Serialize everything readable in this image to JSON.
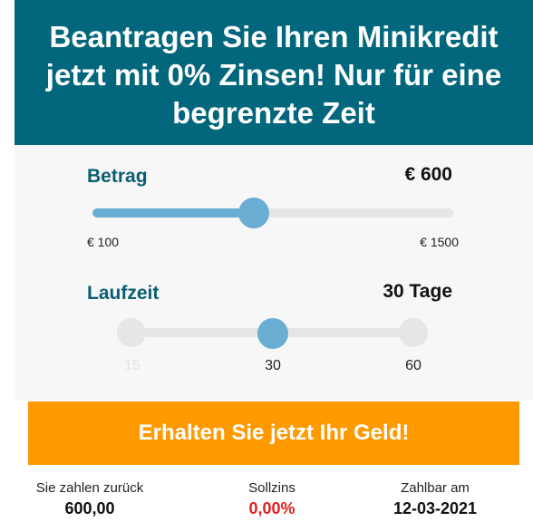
{
  "header": {
    "line1": "Beantragen Sie Ihren Minikredit",
    "line2": "jetzt mit 0% Zinsen! Nur für eine",
    "line3": "begrenzte Zeit"
  },
  "amount": {
    "label": "Betrag",
    "value": "€ 600",
    "min_label": "€ 100",
    "max_label": "€ 1500",
    "min": 100,
    "max": 1500,
    "current": 600
  },
  "term": {
    "label": "Laufzeit",
    "value": "30 Tage",
    "options": [
      "15",
      "30",
      "60"
    ],
    "selected": "30"
  },
  "cta": {
    "label": "Erhalten Sie jetzt Ihr Geld!"
  },
  "summary": {
    "repay_title": "Sie zahlen zurück",
    "repay_value": "600,00",
    "rate_title": "Sollzins",
    "rate_value": "0,00%",
    "due_title": "Zahlbar am",
    "due_value": "12-03-2021"
  },
  "colors": {
    "header_bg": "#02677c",
    "label_color": "#0a5e71",
    "slider_accent": "#6aadd2",
    "cta_bg": "#ff9900",
    "rate_color": "#e02020"
  }
}
